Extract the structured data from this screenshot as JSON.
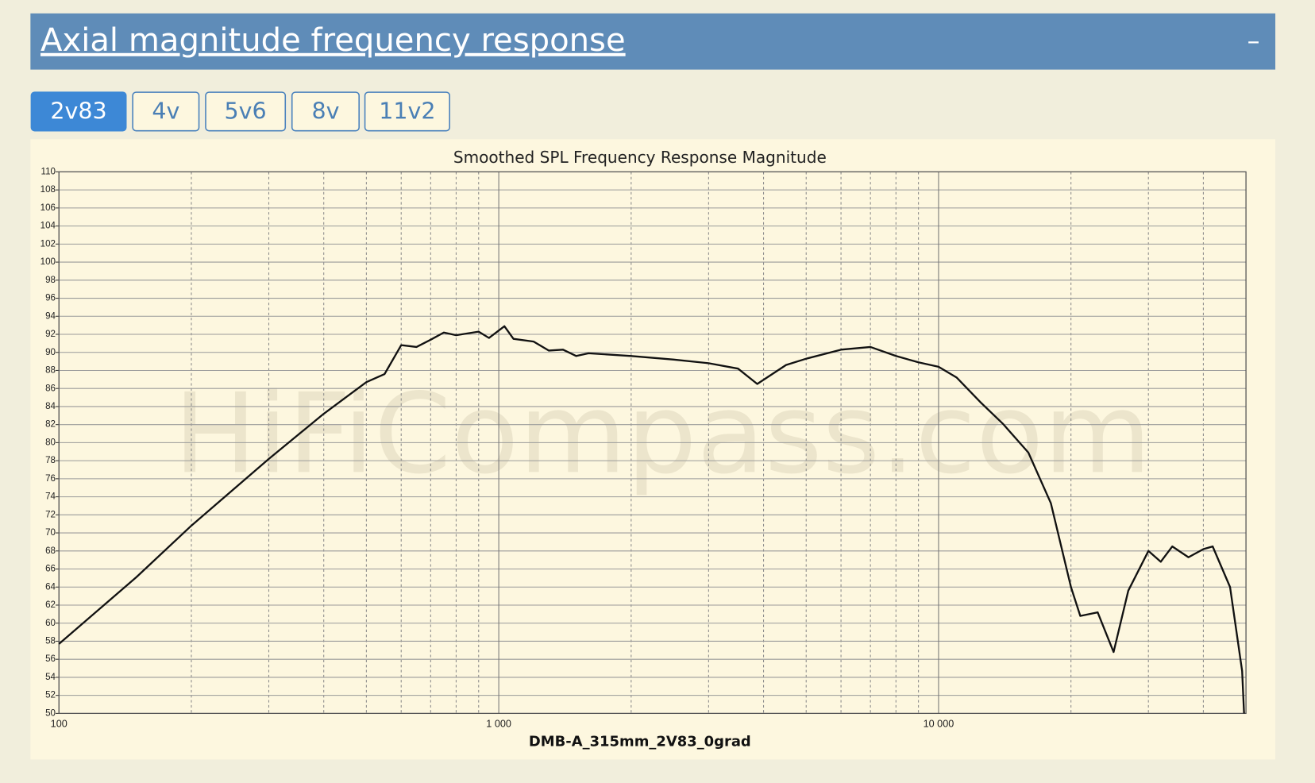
{
  "header": {
    "title": "Axial magnitude frequency response",
    "toggle": "–"
  },
  "tabs": [
    {
      "label": "2v83",
      "active": true
    },
    {
      "label": "4v",
      "active": false
    },
    {
      "label": "5v6",
      "active": false
    },
    {
      "label": "8v",
      "active": false
    },
    {
      "label": "11v2",
      "active": false
    }
  ],
  "chart_data": {
    "type": "line",
    "title": "Smoothed SPL Frequency Response Magnitude",
    "x_label": "DMB-A_315mm_2V83_0grad",
    "watermark": "HiFiCompass.com",
    "x_log": true,
    "grid": true,
    "color": "#111111",
    "xlim": [
      100,
      50000
    ],
    "ylim": [
      50,
      110
    ],
    "xticks": [
      100,
      {
        "value": 1000,
        "label": "1 000"
      },
      {
        "value": 10000,
        "label": "10 000"
      }
    ],
    "yticks": [
      50,
      52,
      54,
      56,
      58,
      60,
      62,
      64,
      66,
      68,
      70,
      72,
      74,
      76,
      78,
      80,
      82,
      84,
      86,
      88,
      90,
      92,
      94,
      96,
      98,
      100,
      102,
      104,
      106,
      108,
      110
    ],
    "x": [
      100,
      150,
      200,
      300,
      400,
      500,
      550,
      600,
      650,
      700,
      750,
      800,
      900,
      950,
      1030,
      1080,
      1200,
      1300,
      1400,
      1500,
      1600,
      2000,
      2500,
      3000,
      3500,
      3870,
      4500,
      5000,
      6000,
      7000,
      8000,
      9000,
      10000,
      11000,
      12500,
      14000,
      16000,
      18000,
      20000,
      21000,
      23000,
      25000,
      27000,
      30000,
      32000,
      34000,
      37000,
      40000,
      42000,
      46000,
      49000,
      49500
    ],
    "values": [
      57.7,
      65.1,
      70.8,
      78.2,
      83.2,
      86.7,
      87.6,
      90.8,
      90.6,
      91.4,
      92.2,
      91.9,
      92.3,
      91.6,
      92.9,
      91.5,
      91.2,
      90.2,
      90.3,
      89.6,
      89.9,
      89.6,
      89.2,
      88.8,
      88.2,
      86.5,
      88.6,
      89.3,
      90.3,
      90.6,
      89.6,
      88.9,
      88.4,
      87.2,
      84.4,
      82.1,
      78.9,
      73.3,
      64.0,
      60.8,
      61.2,
      56.8,
      63.6,
      68.0,
      66.8,
      68.5,
      67.3,
      68.2,
      68.5,
      64.0,
      54.7,
      50.0
    ]
  }
}
